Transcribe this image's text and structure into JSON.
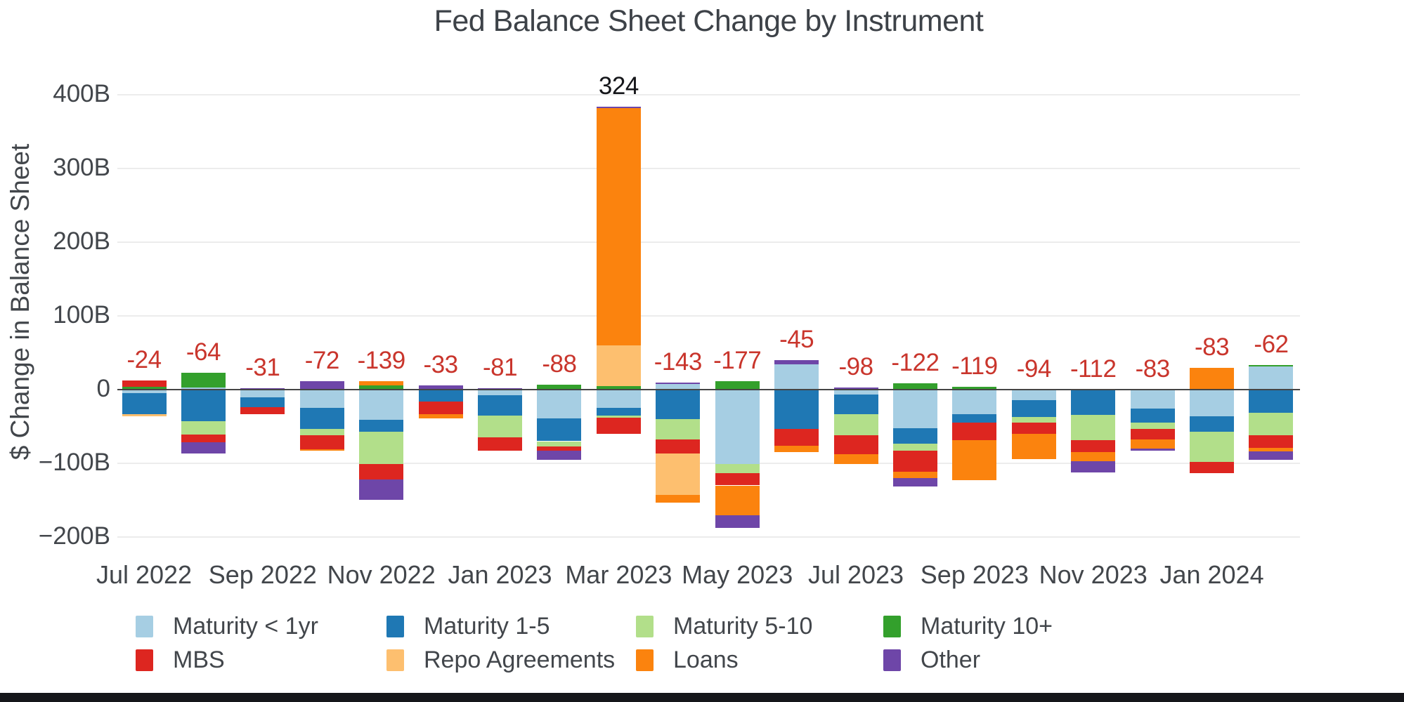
{
  "title": "Fed Balance Sheet Change by Instrument",
  "y_axis": {
    "title": "$ Change in Balance Sheet",
    "ticks": [
      {
        "label": "400B",
        "value": 400
      },
      {
        "label": "300B",
        "value": 300
      },
      {
        "label": "200B",
        "value": 200
      },
      {
        "label": "100B",
        "value": 100
      },
      {
        "label": "0",
        "value": 0
      },
      {
        "label": "−100B",
        "value": -100
      },
      {
        "label": "−200B",
        "value": -200
      }
    ]
  },
  "x_axis": {
    "tick_labels": [
      "Jul 2022",
      "Sep 2022",
      "Nov 2022",
      "Jan 2023",
      "Mar 2023",
      "May 2023",
      "Jul 2023",
      "Sep 2023",
      "Nov 2023",
      "Jan 2024"
    ]
  },
  "colors": {
    "negative_label": "#c9352c",
    "positive_label": "#15161a",
    "zero_line": "#454545",
    "gridline": "#ececec"
  },
  "chart_data": {
    "type": "bar",
    "stacked": true,
    "title": "Fed Balance Sheet Change by Instrument",
    "xlabel": "",
    "ylabel": "$ Change in Balance Sheet",
    "ylim": [
      -200,
      400
    ],
    "grid": true,
    "legend_position": "bottom",
    "units": "billions USD",
    "categories": [
      "Jul 2022",
      "Aug 2022",
      "Sep 2022",
      "Oct 2022",
      "Nov 2022",
      "Dec 2022",
      "Jan 2023",
      "Feb 2023",
      "Mar 2023",
      "Apr 2023",
      "May 2023",
      "Jun 2023",
      "Jul 2023",
      "Aug 2023",
      "Sep 2023",
      "Oct 2023",
      "Nov 2023",
      "Dec 2023",
      "Jan 2024",
      "Feb 2024"
    ],
    "series": [
      {
        "name": "Maturity < 1yr",
        "color": "#a6cee3",
        "values": [
          -5,
          3,
          -10,
          -25,
          -41,
          0,
          -8,
          -39,
          -25,
          8,
          -101,
          34,
          -7,
          -52,
          -33,
          -14,
          0,
          -26,
          -36,
          31
        ]
      },
      {
        "name": "Maturity 1-5",
        "color": "#1f78b4",
        "values": [
          -28,
          -43,
          -14,
          -28,
          -16,
          -16,
          -27,
          -31,
          -10,
          -40,
          0,
          -53,
          -26,
          -21,
          -12,
          -23,
          -34,
          -19,
          -21,
          -31
        ]
      },
      {
        "name": "Maturity 5-10",
        "color": "#b2df8a",
        "values": [
          0,
          -18,
          0,
          -9,
          -44,
          0,
          -30,
          -7,
          -3,
          -28,
          -12,
          0,
          -29,
          -10,
          0,
          -8,
          -35,
          -8,
          -41,
          -31
        ]
      },
      {
        "name": "Maturity 10+",
        "color": "#33a02c",
        "values": [
          4,
          20,
          0,
          0,
          6,
          0,
          0,
          7,
          5,
          0,
          11,
          0,
          0,
          9,
          4,
          0,
          0,
          0,
          0,
          2
        ]
      },
      {
        "name": "MBS",
        "color": "#dd2620",
        "values": [
          8,
          -10,
          -9,
          -19,
          -21,
          -17,
          -18,
          -6,
          -22,
          -19,
          -17,
          -23,
          -26,
          -28,
          -24,
          -15,
          -16,
          -15,
          -15,
          -17
        ]
      },
      {
        "name": "Repo Agreements",
        "color": "#fdbf6f",
        "values": [
          -3,
          0,
          0,
          0,
          0,
          0,
          0,
          0,
          55,
          -56,
          0,
          0,
          0,
          0,
          0,
          0,
          0,
          0,
          0,
          0
        ]
      },
      {
        "name": "Loans",
        "color": "#fb830e",
        "values": [
          0,
          0,
          0,
          -2,
          5,
          -6,
          0,
          0,
          322,
          -10,
          -40,
          -9,
          -13,
          -9,
          -54,
          -34,
          -12,
          -12,
          30,
          -5
        ]
      },
      {
        "name": "Other",
        "color": "#6e46a8",
        "values": [
          0,
          -16,
          2,
          11,
          -28,
          6,
          2,
          -12,
          2,
          2,
          -18,
          6,
          3,
          -11,
          0,
          0,
          -15,
          -3,
          0,
          -11
        ]
      }
    ],
    "totals": [
      -24,
      -64,
      -31,
      -72,
      -139,
      -33,
      -81,
      -88,
      324,
      -143,
      -177,
      -45,
      -98,
      -122,
      -119,
      -94,
      -112,
      -83,
      -83,
      -62
    ],
    "total_labels": [
      "-24",
      "-64",
      "-31",
      "-72",
      "-139",
      "-33",
      "-81",
      "-88",
      "324",
      "-143",
      "-177",
      "-45",
      "-98",
      "-122",
      "-119",
      "-94",
      "-112",
      "-83",
      "-83",
      "-62"
    ]
  },
  "legend": {
    "row1": [
      "Maturity < 1yr",
      "Maturity 1-5",
      "Maturity 5-10",
      "Maturity 10+"
    ],
    "row2": [
      "MBS",
      "Repo Agreements",
      "Loans",
      "Other"
    ]
  }
}
